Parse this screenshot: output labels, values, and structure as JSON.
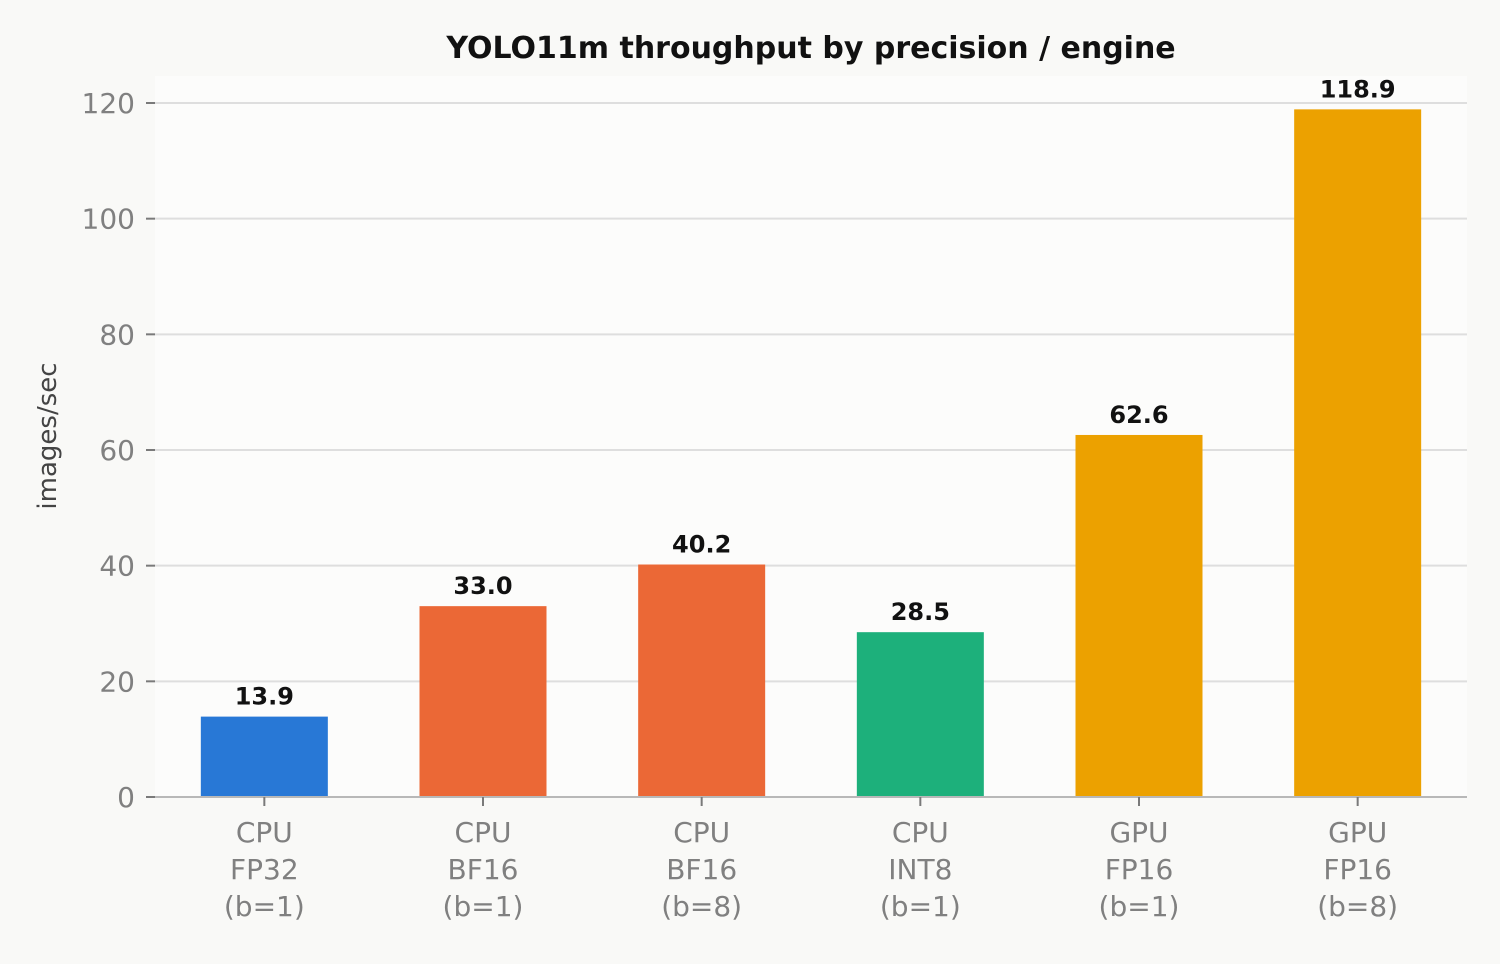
{
  "chart_data": {
    "type": "bar",
    "title": "YOLO11m throughput by precision / engine",
    "xlabel": "",
    "ylabel": "images/sec",
    "ylim": [
      0,
      125
    ],
    "yticks": [
      "0",
      "20",
      "40",
      "60",
      "80",
      "100",
      "120"
    ],
    "grid": true,
    "categories": [
      [
        "CPU",
        "FP32",
        "(b=1)"
      ],
      [
        "CPU",
        "BF16",
        "(b=1)"
      ],
      [
        "CPU",
        "BF16",
        "(b=8)"
      ],
      [
        "CPU",
        "INT8",
        "(b=1)"
      ],
      [
        "GPU",
        "FP16",
        "(b=1)"
      ],
      [
        "GPU",
        "FP16",
        "(b=8)"
      ]
    ],
    "values": [
      13.9,
      33.0,
      40.2,
      28.5,
      62.6,
      118.9
    ],
    "value_labels": [
      "13.9",
      "33.0",
      "40.2",
      "28.5",
      "62.6",
      "118.9"
    ],
    "colors": [
      "#2878d6",
      "#eb6836",
      "#eb6836",
      "#1db07b",
      "#eca100",
      "#eca100"
    ],
    "plot_background": "#fcfcfb",
    "page_background": "#f9f9f7"
  }
}
